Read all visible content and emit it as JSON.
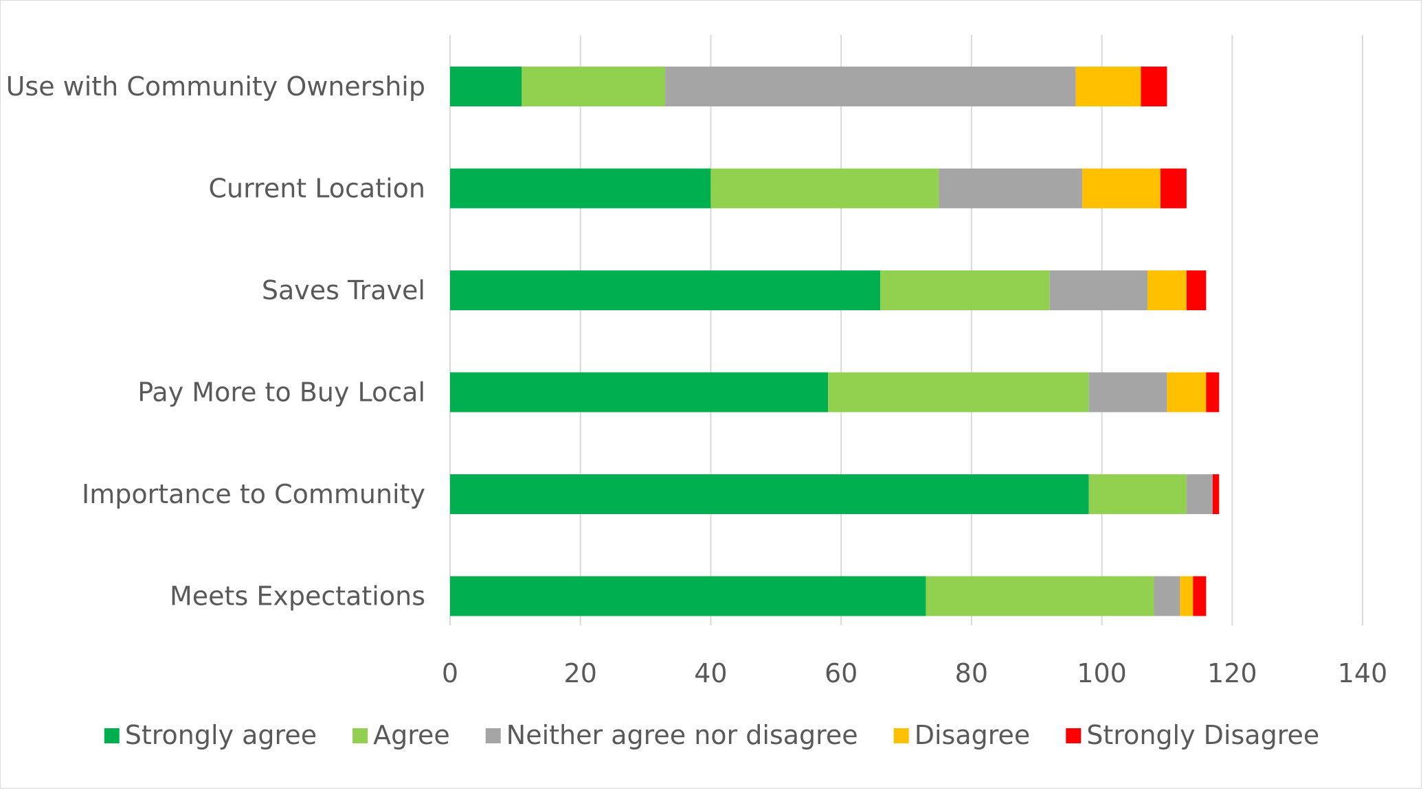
{
  "chart_data": {
    "type": "bar",
    "orientation": "horizontal",
    "stacked": true,
    "title": "",
    "xlabel": "",
    "ylabel": "",
    "xlim": [
      0,
      140
    ],
    "x_ticks": [
      0,
      20,
      40,
      60,
      80,
      100,
      120,
      140
    ],
    "grid": "vertical",
    "legend_position": "bottom",
    "categories": [
      "Use with Community Ownership",
      "Current Location",
      "Saves Travel",
      "Pay More to Buy Local",
      "Importance to Community",
      "Meets Expectations"
    ],
    "series": [
      {
        "name": "Strongly agree",
        "color": "#00b050",
        "values": [
          11,
          40,
          66,
          58,
          98,
          73
        ]
      },
      {
        "name": "Agree",
        "color": "#92d050",
        "values": [
          22,
          35,
          26,
          40,
          15,
          35
        ]
      },
      {
        "name": "Neither agree nor disagree",
        "color": "#a5a5a5",
        "values": [
          63,
          22,
          15,
          12,
          4,
          4
        ]
      },
      {
        "name": "Disagree",
        "color": "#ffc000",
        "values": [
          10,
          12,
          6,
          6,
          0,
          2
        ]
      },
      {
        "name": "Strongly Disagree",
        "color": "#ff0000",
        "values": [
          4,
          4,
          3,
          2,
          1,
          2
        ]
      }
    ]
  }
}
